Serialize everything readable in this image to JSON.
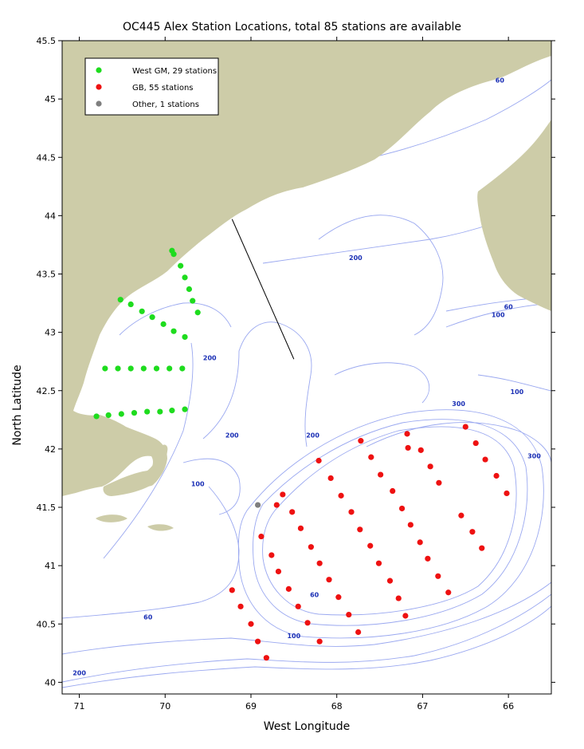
{
  "title": "OC445 Alex Station Locations, total 85 stations are available",
  "xlabel": "West Longitude",
  "ylabel": "North Latitude",
  "colors": {
    "land": "#cdcca8",
    "contour": "#9aa8f0",
    "contour_label": "#1a2fb5",
    "west_gm": "#1edc1e",
    "gb": "#ee1111",
    "other": "#7f7f7f"
  },
  "axes": {
    "xlim": [
      71.2,
      65.5
    ],
    "ylim": [
      39.9,
      45.5
    ],
    "xticks": [
      71,
      70,
      69,
      68,
      67,
      66
    ],
    "xtick_labels": [
      "71",
      "70",
      "69",
      "68",
      "67",
      "66"
    ],
    "yticks": [
      40,
      40.5,
      41,
      41.5,
      42,
      42.5,
      43,
      43.5,
      44,
      44.5,
      45,
      45.5
    ],
    "ytick_labels": [
      "40",
      "40.5",
      "41",
      "41.5",
      "42",
      "42.5",
      "43",
      "43.5",
      "44",
      "44.5",
      "45",
      "45.5"
    ]
  },
  "legend": [
    {
      "label": "West GM, 29 stations",
      "color": "#1edc1e"
    },
    {
      "label": "GB, 55 stations",
      "color": "#ee1111"
    },
    {
      "label": "Other, 1 stations",
      "color": "#7f7f7f"
    }
  ],
  "contour_labels": [
    {
      "text": "60",
      "lon": 66.1,
      "lat": 45.14
    },
    {
      "text": "200",
      "lon": 67.78,
      "lat": 43.62
    },
    {
      "text": "60",
      "lon": 66.0,
      "lat": 43.2
    },
    {
      "text": "100",
      "lon": 66.12,
      "lat": 43.13
    },
    {
      "text": "200",
      "lon": 69.48,
      "lat": 42.76
    },
    {
      "text": "100",
      "lon": 65.9,
      "lat": 42.47
    },
    {
      "text": "300",
      "lon": 66.58,
      "lat": 42.37
    },
    {
      "text": "200",
      "lon": 69.22,
      "lat": 42.1
    },
    {
      "text": "200",
      "lon": 68.28,
      "lat": 42.1
    },
    {
      "text": "300",
      "lon": 65.7,
      "lat": 41.92
    },
    {
      "text": "100",
      "lon": 69.62,
      "lat": 41.68
    },
    {
      "text": "60",
      "lon": 68.26,
      "lat": 40.73
    },
    {
      "text": "60",
      "lon": 70.2,
      "lat": 40.54
    },
    {
      "text": "100",
      "lon": 68.5,
      "lat": 40.38
    },
    {
      "text": "200",
      "lon": 71.0,
      "lat": 40.06
    }
  ],
  "transect_line": {
    "start": [
      69.22,
      43.97
    ],
    "end": [
      68.5,
      42.77
    ]
  },
  "stations": {
    "west_gm": [
      [
        69.92,
        43.7
      ],
      [
        69.9,
        43.67
      ],
      [
        69.82,
        43.57
      ],
      [
        69.77,
        43.47
      ],
      [
        69.72,
        43.37
      ],
      [
        69.68,
        43.27
      ],
      [
        69.62,
        43.17
      ],
      [
        70.52,
        43.28
      ],
      [
        70.4,
        43.24
      ],
      [
        70.27,
        43.18
      ],
      [
        70.15,
        43.13
      ],
      [
        70.02,
        43.07
      ],
      [
        69.9,
        43.01
      ],
      [
        69.77,
        42.96
      ],
      [
        70.7,
        42.69
      ],
      [
        70.55,
        42.69
      ],
      [
        70.4,
        42.69
      ],
      [
        70.25,
        42.69
      ],
      [
        70.1,
        42.69
      ],
      [
        69.95,
        42.69
      ],
      [
        69.8,
        42.69
      ],
      [
        70.8,
        42.28
      ],
      [
        70.66,
        42.29
      ],
      [
        70.51,
        42.3
      ],
      [
        70.36,
        42.31
      ],
      [
        70.21,
        42.32
      ],
      [
        70.06,
        42.32
      ],
      [
        69.92,
        42.33
      ],
      [
        69.77,
        42.34
      ]
    ],
    "gb": [
      [
        66.5,
        42.19
      ],
      [
        66.38,
        42.05
      ],
      [
        66.27,
        41.91
      ],
      [
        66.14,
        41.77
      ],
      [
        66.02,
        41.62
      ],
      [
        66.55,
        41.43
      ],
      [
        66.42,
        41.29
      ],
      [
        66.31,
        41.15
      ],
      [
        66.7,
        40.77
      ],
      [
        66.82,
        40.91
      ],
      [
        66.94,
        41.06
      ],
      [
        67.03,
        41.2
      ],
      [
        67.14,
        41.35
      ],
      [
        67.24,
        41.49
      ],
      [
        67.35,
        41.64
      ],
      [
        67.49,
        41.78
      ],
      [
        67.6,
        41.93
      ],
      [
        67.72,
        42.07
      ],
      [
        67.02,
        41.99
      ],
      [
        66.91,
        41.85
      ],
      [
        66.81,
        41.71
      ],
      [
        67.18,
        42.13
      ],
      [
        67.2,
        40.57
      ],
      [
        67.28,
        40.72
      ],
      [
        67.38,
        40.87
      ],
      [
        67.51,
        41.02
      ],
      [
        67.61,
        41.17
      ],
      [
        67.73,
        41.31
      ],
      [
        67.83,
        41.46
      ],
      [
        67.95,
        41.6
      ],
      [
        68.07,
        41.75
      ],
      [
        68.21,
        41.9
      ],
      [
        67.75,
        40.43
      ],
      [
        67.86,
        40.58
      ],
      [
        67.98,
        40.73
      ],
      [
        68.09,
        40.88
      ],
      [
        68.2,
        41.02
      ],
      [
        68.3,
        41.16
      ],
      [
        68.42,
        41.32
      ],
      [
        68.52,
        41.46
      ],
      [
        68.63,
        41.61
      ],
      [
        68.2,
        40.35
      ],
      [
        68.34,
        40.51
      ],
      [
        68.45,
        40.65
      ],
      [
        68.56,
        40.8
      ],
      [
        68.68,
        40.95
      ],
      [
        68.76,
        41.09
      ],
      [
        68.88,
        41.25
      ],
      [
        68.7,
        41.52
      ],
      [
        68.82,
        40.21
      ],
      [
        68.92,
        40.35
      ],
      [
        69.0,
        40.5
      ],
      [
        69.12,
        40.65
      ],
      [
        69.22,
        40.79
      ],
      [
        67.17,
        42.01
      ]
    ],
    "other": [
      [
        68.92,
        41.52
      ]
    ]
  }
}
